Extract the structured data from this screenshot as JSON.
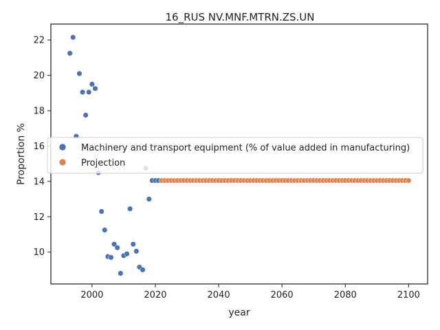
{
  "chart_data": {
    "type": "scatter",
    "title": "16_RUS NV.MNF.MTRN.ZS.UN",
    "xlabel": "year",
    "ylabel": "Proportion %",
    "xlim": [
      1987,
      2106
    ],
    "ylim": [
      8.2,
      22.9
    ],
    "xticks": [
      2000,
      2020,
      2040,
      2060,
      2080,
      2100
    ],
    "yticks": [
      10,
      12,
      14,
      16,
      18,
      20,
      22
    ],
    "legend_position": "center-left",
    "series": [
      {
        "name": "Machinery and transport equipment (% of value added in manufacturing)",
        "color": "#4c72b0",
        "points": [
          [
            1993,
            21.25
          ],
          [
            1994,
            22.15
          ],
          [
            1995,
            16.55
          ],
          [
            1996,
            20.1
          ],
          [
            1997,
            19.05
          ],
          [
            1998,
            17.75
          ],
          [
            1999,
            19.05
          ],
          [
            2000,
            19.5
          ],
          [
            2001,
            19.25
          ],
          [
            2002,
            14.5
          ],
          [
            2003,
            12.3
          ],
          [
            2004,
            11.25
          ],
          [
            2005,
            9.75
          ],
          [
            2006,
            9.7
          ],
          [
            2007,
            10.45
          ],
          [
            2008,
            10.25
          ],
          [
            2009,
            8.8
          ],
          [
            2010,
            9.8
          ],
          [
            2011,
            9.9
          ],
          [
            2012,
            12.45
          ],
          [
            2013,
            10.45
          ],
          [
            2014,
            10.05
          ],
          [
            2015,
            9.15
          ],
          [
            2016,
            9.0
          ],
          [
            2017,
            14.75
          ],
          [
            2018,
            13.0
          ],
          [
            2019,
            14.05
          ],
          [
            2020,
            14.05
          ],
          [
            2021,
            14.05
          ]
        ]
      },
      {
        "name": "Projection",
        "color": "#dd8452",
        "x_start": 2022,
        "x_end": 2100,
        "value": 14.05
      }
    ]
  }
}
